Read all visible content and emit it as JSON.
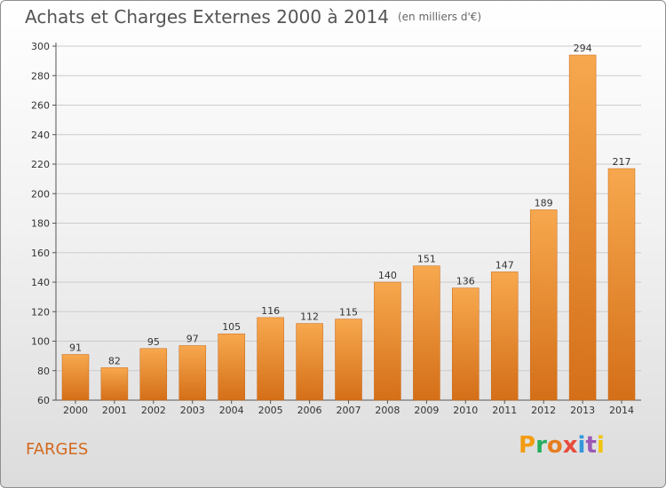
{
  "header": {
    "title": "Achats et Charges Externes 2000 à 2014",
    "subtitle": "(en milliers d'€)"
  },
  "footer": {
    "town": "FARGES",
    "brand_logo": "Proxiti"
  },
  "colors": {
    "bar_light": "#f7a84e",
    "bar_dark": "#d46f18",
    "bar_stroke": "#c86414",
    "grid": "#cccccc",
    "town": "#d2691e",
    "logo_letters": [
      "#f39c12",
      "#27ae60",
      "#e67e22",
      "#e74c3c",
      "#3498db",
      "#9b59b6",
      "#f1c40f"
    ]
  },
  "chart_data": {
    "type": "bar",
    "title": "Achats et Charges Externes 2000 à 2014",
    "subtitle": "(en milliers d'€)",
    "xlabel": "",
    "ylabel": "",
    "categories": [
      "2000",
      "2001",
      "2002",
      "2003",
      "2004",
      "2005",
      "2006",
      "2007",
      "2008",
      "2009",
      "2010",
      "2011",
      "2012",
      "2013",
      "2014"
    ],
    "values": [
      91,
      82,
      95,
      97,
      105,
      116,
      112,
      115,
      140,
      151,
      136,
      147,
      189,
      294,
      217
    ],
    "ylim": [
      60,
      300
    ],
    "yticks": [
      60,
      80,
      100,
      120,
      140,
      160,
      180,
      200,
      220,
      240,
      260,
      280,
      300
    ],
    "grid": "horizontal",
    "legend": "none"
  }
}
